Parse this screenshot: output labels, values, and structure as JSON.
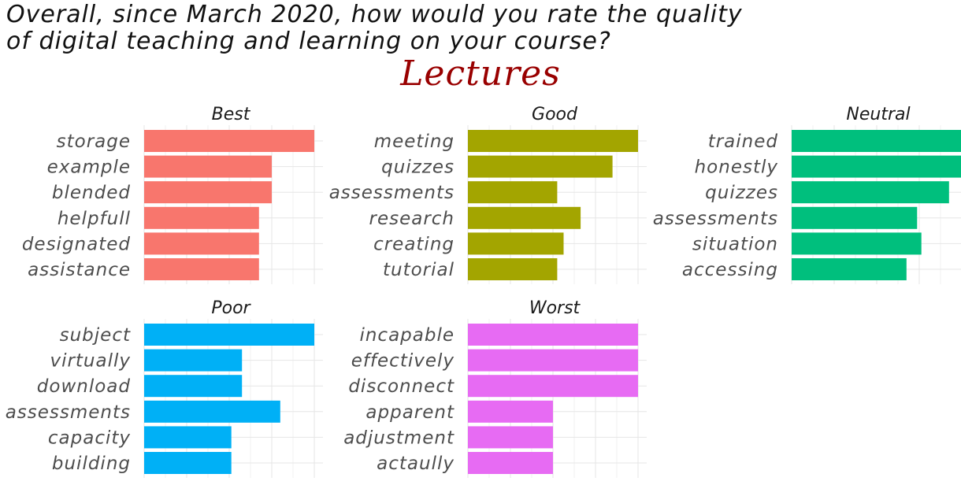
{
  "title": {
    "line1": "Overall, since March 2020, how would you rate the quality",
    "line2": "of digital teaching and learning on your course?"
  },
  "subtitle": "Lectures",
  "chart_data": {
    "type": "bar",
    "orientation": "horizontal",
    "facet_layout": "3 columns x 2 rows",
    "grid": true,
    "legend": "none",
    "x_axis_tick_labels": "none shown",
    "panels": [
      {
        "name": "Best",
        "color": "#F8766D",
        "categories": [
          "storage",
          "example",
          "blended",
          "helpfull",
          "designated",
          "assistance"
        ],
        "values": [
          8,
          6,
          6,
          5.4,
          5.4,
          5.4
        ]
      },
      {
        "name": "Good",
        "color": "#A3A500",
        "categories": [
          "meeting",
          "quizzes",
          "assessments",
          "research",
          "creating",
          "tutorial"
        ],
        "values": [
          8,
          6.8,
          4.2,
          5.3,
          4.5,
          4.2
        ]
      },
      {
        "name": "Neutral",
        "color": "#00BF7D",
        "categories": [
          "trained",
          "honestly",
          "quizzes",
          "assessments",
          "situation",
          "accessing"
        ],
        "values": [
          8,
          8,
          7.4,
          5.9,
          6.1,
          5.4
        ]
      },
      {
        "name": "Poor",
        "color": "#00B0F6",
        "categories": [
          "subject",
          "virtually",
          "download",
          "assessments",
          "capacity",
          "building"
        ],
        "values": [
          8,
          4.6,
          4.6,
          6.4,
          4.1,
          4.1
        ]
      },
      {
        "name": "Worst",
        "color": "#E76BF3",
        "categories": [
          "incapable",
          "effectively",
          "disconnect",
          "apparent",
          "adjustment",
          "actaully"
        ],
        "values": [
          8,
          8,
          8,
          4,
          4,
          4
        ]
      }
    ]
  }
}
